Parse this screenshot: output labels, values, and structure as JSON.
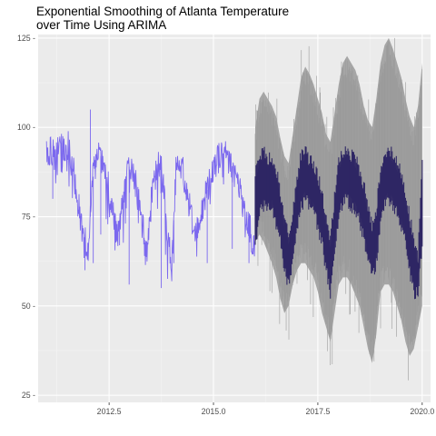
{
  "colors": {
    "panel": "#ebebeb",
    "grid_major": "#ffffff",
    "grid_minor": "#f4f4f4",
    "history": "#7b68ee",
    "forecast_mean": "#2e2664",
    "forecast_band": "#a6a6a6",
    "tick_text": "#4d4d4d",
    "tick_mark": "#333333"
  },
  "chart_data": {
    "type": "line",
    "title": "Exponential Smoothing of Atlanta Temperature over Time Using ARIMA",
    "title_lines": [
      "Exponential Smoothing of Atlanta Temperature",
      "over Time Using ARIMA"
    ],
    "xlabel": "",
    "ylabel": "",
    "x_range": [
      2010.8,
      2020.2
    ],
    "y_range": [
      23,
      126
    ],
    "x_ticks": [
      2012.5,
      2015.0,
      2017.5,
      2020.0
    ],
    "x_tick_labels": [
      "2012.5",
      "2015.0",
      "2017.5",
      "2020.0"
    ],
    "y_ticks": [
      25,
      50,
      75,
      100,
      125
    ],
    "y_tick_labels": [
      "25 -",
      "50 -",
      "75 -",
      "100 -",
      "125 -"
    ],
    "grid": true,
    "legend": "none",
    "series": [
      {
        "role": "history",
        "x": [
          2011.0,
          2011.1,
          2011.2,
          2011.3,
          2011.4,
          2011.5,
          2011.6,
          2011.7,
          2011.8,
          2011.9,
          2012.0,
          2012.1,
          2012.2,
          2012.3,
          2012.4,
          2012.5,
          2012.6,
          2012.7,
          2012.8,
          2012.9,
          2013.0,
          2013.1,
          2013.2,
          2013.3,
          2013.4,
          2013.5,
          2013.6,
          2013.7,
          2013.8,
          2013.9,
          2014.0,
          2014.1,
          2014.2,
          2014.3,
          2014.4,
          2014.5,
          2014.6,
          2014.7,
          2014.8,
          2014.9,
          2015.0,
          2015.1,
          2015.2,
          2015.3,
          2015.4,
          2015.5,
          2015.6,
          2015.7,
          2015.8,
          2015.9,
          2016.0
        ],
        "values": [
          92,
          94,
          91,
          95,
          93,
          96,
          90,
          84,
          75,
          70,
          65,
          85,
          91,
          92,
          88,
          82,
          75,
          70,
          78,
          85,
          90,
          86,
          80,
          72,
          65,
          78,
          86,
          90,
          85,
          70,
          60,
          88,
          90,
          86,
          80,
          73,
          70,
          75,
          80,
          85,
          90,
          91,
          93,
          92,
          90,
          87,
          84,
          79,
          75,
          70,
          66
        ],
        "spikes": [
          {
            "x": 2011.15,
            "low": 80
          },
          {
            "x": 2011.85,
            "low": 68
          },
          {
            "x": 2011.92,
            "low": 60
          },
          {
            "x": 2012.05,
            "high": 105
          },
          {
            "x": 2012.12,
            "low": 62
          },
          {
            "x": 2012.3,
            "low": 70
          },
          {
            "x": 2012.75,
            "low": 67
          },
          {
            "x": 2012.98,
            "low": 56
          },
          {
            "x": 2013.35,
            "low": 64
          },
          {
            "x": 2013.75,
            "low": 55
          },
          {
            "x": 2014.05,
            "low": 62
          },
          {
            "x": 2014.85,
            "low": 62
          },
          {
            "x": 2015.45,
            "low": 66
          },
          {
            "x": 2015.85,
            "low": 62
          }
        ]
      },
      {
        "role": "forecast",
        "x": [
          2016.0,
          2016.1,
          2016.2,
          2016.3,
          2016.4,
          2016.5,
          2016.6,
          2016.7,
          2016.8,
          2016.9,
          2017.0,
          2017.1,
          2017.2,
          2017.3,
          2017.4,
          2017.5,
          2017.6,
          2017.7,
          2017.8,
          2017.9,
          2018.0,
          2018.1,
          2018.2,
          2018.3,
          2018.4,
          2018.5,
          2018.6,
          2018.7,
          2018.8,
          2018.9,
          2019.0,
          2019.1,
          2019.2,
          2019.3,
          2019.4,
          2019.5,
          2019.6,
          2019.7,
          2019.8,
          2019.9,
          2020.0
        ],
        "mean": [
          85,
          90,
          91,
          89,
          90,
          86,
          80,
          72,
          67,
          74,
          84,
          90,
          91,
          89,
          88,
          84,
          80,
          72,
          66,
          78,
          88,
          91,
          92,
          90,
          89,
          86,
          82,
          76,
          70,
          75,
          86,
          91,
          92,
          90,
          88,
          85,
          80,
          73,
          66,
          62,
          88
        ],
        "mean_low": [
          68,
          78,
          80,
          79,
          80,
          74,
          70,
          62,
          58,
          64,
          73,
          80,
          82,
          80,
          79,
          74,
          70,
          62,
          56,
          67,
          77,
          81,
          82,
          80,
          79,
          76,
          71,
          66,
          60,
          64,
          75,
          80,
          82,
          80,
          78,
          74,
          70,
          62,
          56,
          55,
          70
        ],
        "lower": [
          68,
          70,
          68,
          65,
          62,
          58,
          52,
          48,
          50,
          56,
          60,
          62,
          62,
          60,
          58,
          54,
          48,
          44,
          40,
          48,
          56,
          58,
          58,
          56,
          53,
          50,
          44,
          38,
          34,
          42,
          54,
          56,
          56,
          54,
          50,
          46,
          40,
          36,
          38,
          44,
          50
        ],
        "upper": [
          100,
          108,
          110,
          108,
          106,
          103,
          97,
          92,
          90,
          98,
          106,
          114,
          117,
          115,
          112,
          108,
          104,
          98,
          96,
          104,
          112,
          118,
          120,
          118,
          116,
          112,
          106,
          102,
          100,
          108,
          118,
          123,
          125,
          122,
          118,
          114,
          108,
          103,
          100,
          106,
          118
        ]
      }
    ]
  }
}
